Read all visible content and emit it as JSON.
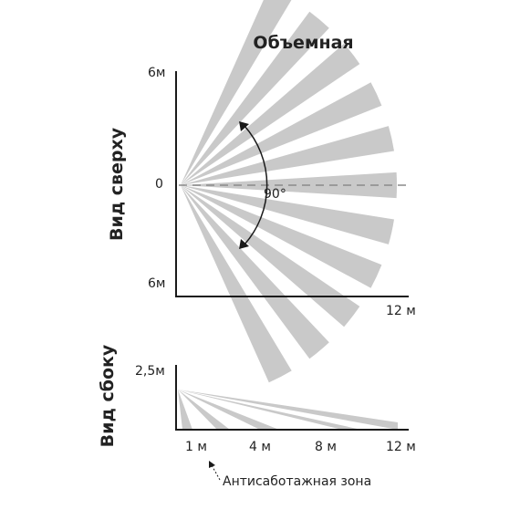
{
  "title": "Объемная",
  "top_view": {
    "label": "Вид сверху",
    "y_top": "6м",
    "y_mid": "0",
    "y_bottom": "6м",
    "x_end": "12 м",
    "angle": "90°"
  },
  "side_view": {
    "label": "Вид сбоку",
    "y_top": "2,5м",
    "ticks": [
      "1 м",
      "4 м",
      "8 м",
      "12 м"
    ],
    "note": "Антисаботажная зона"
  },
  "colors": {
    "beam": "#c9c9c9",
    "axis": "#1a1a1a",
    "dash": "#8a8a8a"
  }
}
